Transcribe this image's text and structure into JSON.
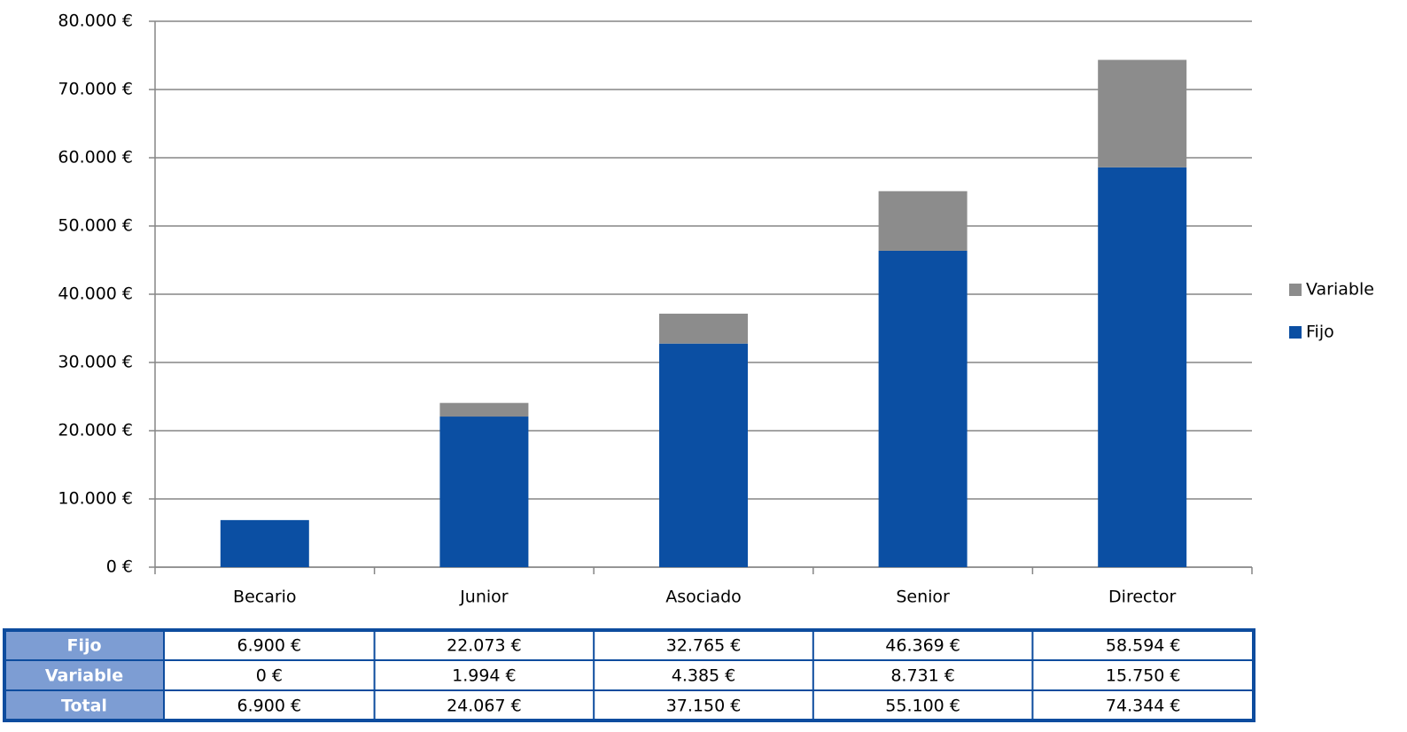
{
  "chart_data": {
    "type": "bar",
    "stacked": true,
    "categories": [
      "Becario",
      "Junior",
      "Asociado",
      "Senior",
      "Director"
    ],
    "series": [
      {
        "name": "Fijo",
        "color": "#0b4fa3",
        "values": [
          6900,
          22073,
          32765,
          46369,
          58594
        ],
        "value_labels": [
          "6.900 €",
          "22.073 €",
          "32.765 €",
          "46.369 €",
          "58.594 €"
        ]
      },
      {
        "name": "Variable",
        "color": "#8c8c8c",
        "values": [
          0,
          1994,
          4385,
          8731,
          15750
        ],
        "value_labels": [
          "0 €",
          "1.994 €",
          "4.385 €",
          "8.731 €",
          "15.750 €"
        ]
      }
    ],
    "total": {
      "name": "Total",
      "values": [
        6900,
        24067,
        37150,
        55100,
        74344
      ],
      "value_labels": [
        "6.900 €",
        "24.067 €",
        "37.150 €",
        "55.100 €",
        "74.344 €"
      ]
    },
    "ylim": [
      0,
      80000
    ],
    "yticks": [
      {
        "value": 0,
        "label": "0 €"
      },
      {
        "value": 10000,
        "label": "10.000 €"
      },
      {
        "value": 20000,
        "label": "20.000 €"
      },
      {
        "value": 30000,
        "label": "30.000 €"
      },
      {
        "value": 40000,
        "label": "40.000 €"
      },
      {
        "value": 50000,
        "label": "50.000 €"
      },
      {
        "value": 60000,
        "label": "60.000 €"
      },
      {
        "value": 70000,
        "label": "70.000 €"
      },
      {
        "value": 80000,
        "label": "80.000 €"
      }
    ],
    "grid": true,
    "legend": "right"
  }
}
